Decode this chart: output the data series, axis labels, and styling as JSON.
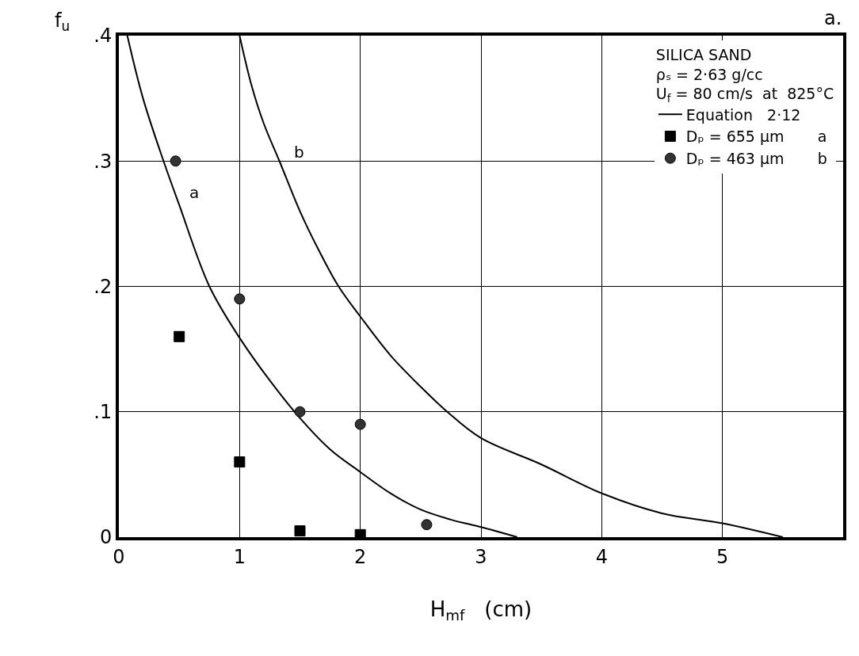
{
  "chart_data": {
    "type": "scatter",
    "xlabel": "H$_{mf}$   (cm)",
    "ylabel": "f$_{u}$",
    "legend_title": "SILICA SAND\nρₛ = 2·63 g/cc\nU$_{f}$ = 80 cm/s  at  825°C",
    "xlim": [
      0,
      6
    ],
    "ylim": [
      0,
      0.4
    ],
    "xticks": [
      0,
      1,
      2,
      3,
      4,
      5
    ],
    "yticks": [
      {
        "value": 0,
        "label": "0"
      },
      {
        "value": 0.1,
        "label": ".1"
      },
      {
        "value": 0.2,
        "label": ".2"
      },
      {
        "value": 0.3,
        "label": ".3"
      },
      {
        "value": 0.4,
        "label": ".4"
      }
    ],
    "grid": true,
    "legend": "top right",
    "series": [
      {
        "name": "Equation   2·12",
        "type": "line",
        "color": "#000000",
        "marker": "none",
        "line_style": "solid",
        "x": [
          0.07,
          0.2,
          0.37,
          0.5,
          0.75,
          1.0,
          1.25,
          1.5,
          1.75,
          2.0,
          2.25,
          2.5,
          2.75,
          3.0,
          3.3
        ],
        "values": [
          0.4,
          0.35,
          0.3,
          0.265,
          0.2,
          0.159,
          0.125,
          0.095,
          0.07,
          0.052,
          0.035,
          0.022,
          0.014,
          0.008,
          0.0
        ]
      },
      {
        "type": "line",
        "color": "#000000",
        "marker": "none",
        "line_style": "solid",
        "x": [
          1.0,
          1.1,
          1.2,
          1.33,
          1.5,
          1.65,
          1.82,
          2.0,
          2.25,
          2.5,
          2.72,
          3.0,
          3.5,
          4.0,
          4.5,
          5.0,
          5.5
        ],
        "values": [
          0.4,
          0.36,
          0.33,
          0.3,
          0.26,
          0.23,
          0.2,
          0.176,
          0.145,
          0.12,
          0.1,
          0.079,
          0.058,
          0.035,
          0.019,
          0.011,
          0.0
        ]
      },
      {
        "name": "Dₚ = 655 µm       a",
        "color": "#000000",
        "marker": "square",
        "x": [
          0.5,
          1.0,
          1.5,
          2.0
        ],
        "values": [
          0.16,
          0.06,
          0.005,
          0.002
        ]
      },
      {
        "name": "Dₚ = 463 µm       b",
        "color": "#333333",
        "marker": "circle",
        "x": [
          0.47,
          1.0,
          1.5,
          2.0,
          2.55
        ],
        "values": [
          0.3,
          0.19,
          0.1,
          0.09,
          0.01
        ]
      }
    ],
    "annotations": [
      "a.",
      "a",
      "b"
    ]
  }
}
